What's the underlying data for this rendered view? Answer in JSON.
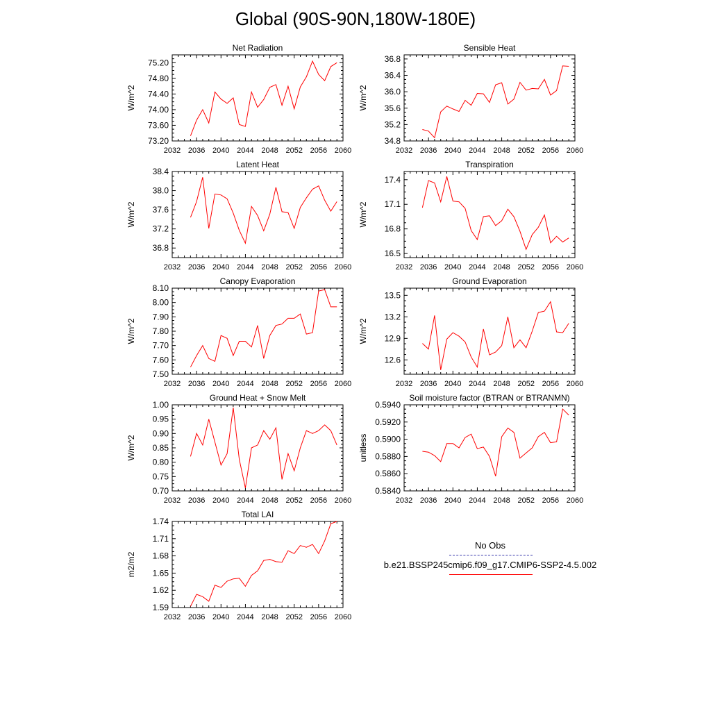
{
  "page": {
    "title": "Global (90S-90N,180W-180E)"
  },
  "legend": {
    "obs_label": "No Obs",
    "model_label": "b.e21.BSSP245cmip6.f09_g17.CMIP6-SSP2-4.5.002",
    "obs_color": "#3333aa",
    "model_color": "#ff0000"
  },
  "chart_data": [
    {
      "type": "line",
      "title": "Net Radiation",
      "ylabel": "W/m^2",
      "xlim": [
        2032,
        2060
      ],
      "ylim": [
        73.2,
        75.4
      ],
      "xticks": [
        "2032",
        "2036",
        "2040",
        "2044",
        "2048",
        "2052",
        "2056",
        "2060"
      ],
      "yticks": [
        "73.20",
        "73.60",
        "74.00",
        "74.40",
        "74.80",
        "75.20"
      ],
      "x": [
        2035,
        2036,
        2037,
        2038,
        2039,
        2040,
        2041,
        2042,
        2043,
        2044,
        2045,
        2046,
        2047,
        2048,
        2049,
        2050,
        2051,
        2052,
        2053,
        2054,
        2055,
        2056,
        2057,
        2058,
        2059
      ],
      "values": [
        73.33,
        73.73,
        74.0,
        73.66,
        74.45,
        74.27,
        74.16,
        74.3,
        73.62,
        73.57,
        74.45,
        74.06,
        74.26,
        74.57,
        74.64,
        74.11,
        74.6,
        74.02,
        74.58,
        74.84,
        75.24,
        74.9,
        74.74,
        75.1,
        75.2
      ],
      "color": "#ff0000"
    },
    {
      "type": "line",
      "title": "Sensible Heat",
      "ylabel": "W/m^2",
      "xlim": [
        2032,
        2060
      ],
      "ylim": [
        34.8,
        36.9
      ],
      "xticks": [
        "2032",
        "2036",
        "2040",
        "2044",
        "2048",
        "2052",
        "2056",
        "2060"
      ],
      "yticks": [
        "34.8",
        "35.2",
        "35.6",
        "36.0",
        "36.4",
        "36.8"
      ],
      "x": [
        2035,
        2036,
        2037,
        2038,
        2039,
        2040,
        2041,
        2042,
        2043,
        2044,
        2045,
        2046,
        2047,
        2048,
        2049,
        2050,
        2051,
        2052,
        2053,
        2054,
        2055,
        2056,
        2057,
        2058,
        2059
      ],
      "values": [
        35.08,
        35.04,
        34.88,
        35.51,
        35.65,
        35.58,
        35.52,
        35.79,
        35.67,
        35.96,
        35.95,
        35.74,
        36.17,
        36.22,
        35.7,
        35.82,
        36.23,
        36.04,
        36.08,
        36.07,
        36.3,
        35.92,
        36.03,
        36.63,
        36.62
      ],
      "color": "#ff0000"
    },
    {
      "type": "line",
      "title": "Latent Heat",
      "ylabel": "W/m^2",
      "xlim": [
        2032,
        2060
      ],
      "ylim": [
        36.6,
        38.4
      ],
      "xticks": [
        "2032",
        "2036",
        "2040",
        "2044",
        "2048",
        "2052",
        "2056",
        "2060"
      ],
      "yticks": [
        "36.8",
        "37.2",
        "37.6",
        "38.0",
        "38.4"
      ],
      "x": [
        2035,
        2036,
        2037,
        2038,
        2039,
        2040,
        2041,
        2042,
        2043,
        2044,
        2045,
        2046,
        2047,
        2048,
        2049,
        2050,
        2051,
        2052,
        2053,
        2054,
        2055,
        2056,
        2057,
        2058,
        2059
      ],
      "values": [
        37.44,
        37.77,
        38.28,
        37.21,
        37.93,
        37.91,
        37.83,
        37.53,
        37.17,
        36.9,
        37.67,
        37.48,
        37.16,
        37.51,
        38.07,
        37.56,
        37.54,
        37.21,
        37.65,
        37.85,
        38.03,
        38.1,
        37.8,
        37.57,
        37.77
      ],
      "color": "#ff0000"
    },
    {
      "type": "line",
      "title": "Transpiration",
      "ylabel": "W/m^2",
      "xlim": [
        2032,
        2060
      ],
      "ylim": [
        16.45,
        17.5
      ],
      "xticks": [
        "2032",
        "2036",
        "2040",
        "2044",
        "2048",
        "2052",
        "2056",
        "2060"
      ],
      "yticks": [
        "16.5",
        "16.8",
        "17.1",
        "17.4"
      ],
      "x": [
        2035,
        2036,
        2037,
        2038,
        2039,
        2040,
        2041,
        2042,
        2043,
        2044,
        2045,
        2046,
        2047,
        2048,
        2049,
        2050,
        2051,
        2052,
        2053,
        2054,
        2055,
        2056,
        2057,
        2058,
        2059
      ],
      "values": [
        17.06,
        17.39,
        17.36,
        17.13,
        17.44,
        17.14,
        17.13,
        17.05,
        16.78,
        16.67,
        16.95,
        16.96,
        16.84,
        16.9,
        17.04,
        16.95,
        16.77,
        16.55,
        16.73,
        16.82,
        16.97,
        16.63,
        16.71,
        16.64,
        16.69
      ],
      "color": "#ff0000"
    },
    {
      "type": "line",
      "title": "Canopy Evaporation",
      "ylabel": "W/m^2",
      "xlim": [
        2032,
        2060
      ],
      "ylim": [
        7.5,
        8.1
      ],
      "xticks": [
        "2032",
        "2036",
        "2040",
        "2044",
        "2048",
        "2052",
        "2056",
        "2060"
      ],
      "yticks": [
        "7.50",
        "7.60",
        "7.70",
        "7.80",
        "7.90",
        "8.00",
        "8.10"
      ],
      "x": [
        2035,
        2036,
        2037,
        2038,
        2039,
        2040,
        2041,
        2042,
        2043,
        2044,
        2045,
        2046,
        2047,
        2048,
        2049,
        2050,
        2051,
        2052,
        2053,
        2054,
        2055,
        2056,
        2057,
        2058,
        2059
      ],
      "values": [
        7.55,
        7.63,
        7.7,
        7.61,
        7.59,
        7.77,
        7.75,
        7.63,
        7.73,
        7.73,
        7.69,
        7.84,
        7.61,
        7.77,
        7.84,
        7.85,
        7.89,
        7.89,
        7.92,
        7.78,
        7.79,
        8.08,
        8.09,
        7.97,
        7.97
      ],
      "color": "#ff0000"
    },
    {
      "type": "line",
      "title": "Ground Evaporation",
      "ylabel": "W/m^2",
      "xlim": [
        2032,
        2060
      ],
      "ylim": [
        12.4,
        13.6
      ],
      "xticks": [
        "2032",
        "2036",
        "2040",
        "2044",
        "2048",
        "2052",
        "2056",
        "2060"
      ],
      "yticks": [
        "12.6",
        "12.9",
        "13.2",
        "13.5"
      ],
      "x": [
        2035,
        2036,
        2037,
        2038,
        2039,
        2040,
        2041,
        2042,
        2043,
        2044,
        2045,
        2046,
        2047,
        2048,
        2049,
        2050,
        2051,
        2052,
        2053,
        2054,
        2055,
        2056,
        2057,
        2058,
        2059
      ],
      "values": [
        12.83,
        12.75,
        13.22,
        12.46,
        12.89,
        12.98,
        12.93,
        12.85,
        12.64,
        12.5,
        13.03,
        12.67,
        12.71,
        12.8,
        13.2,
        12.77,
        12.88,
        12.77,
        13.0,
        13.26,
        13.28,
        13.41,
        12.99,
        12.98,
        13.11
      ],
      "color": "#ff0000"
    },
    {
      "type": "line",
      "title": "Ground Heat + Snow Melt",
      "ylabel": "W/m^2",
      "xlim": [
        2032,
        2060
      ],
      "ylim": [
        0.7,
        1.0
      ],
      "xticks": [
        "2032",
        "2036",
        "2040",
        "2044",
        "2048",
        "2052",
        "2056",
        "2060"
      ],
      "yticks": [
        "0.70",
        "0.75",
        "0.80",
        "0.85",
        "0.90",
        "0.95",
        "1.00"
      ],
      "x": [
        2035,
        2036,
        2037,
        2038,
        2039,
        2040,
        2041,
        2042,
        2043,
        2044,
        2045,
        2046,
        2047,
        2048,
        2049,
        2050,
        2051,
        2052,
        2053,
        2054,
        2055,
        2056,
        2057,
        2058,
        2059
      ],
      "values": [
        0.82,
        0.9,
        0.86,
        0.95,
        0.87,
        0.79,
        0.83,
        0.99,
        0.81,
        0.71,
        0.85,
        0.86,
        0.91,
        0.88,
        0.92,
        0.74,
        0.83,
        0.77,
        0.85,
        0.91,
        0.9,
        0.91,
        0.93,
        0.91,
        0.86
      ],
      "color": "#ff0000"
    },
    {
      "type": "line",
      "title": "Soil moisture factor (BTRAN or BTRANMN)",
      "ylabel": "unitless",
      "xlim": [
        2032,
        2060
      ],
      "ylim": [
        0.584,
        0.594
      ],
      "xticks": [
        "2032",
        "2036",
        "2040",
        "2044",
        "2048",
        "2052",
        "2056",
        "2060"
      ],
      "yticks": [
        "0.5840",
        "0.5860",
        "0.5880",
        "0.5900",
        "0.5920",
        "0.5940"
      ],
      "x": [
        2035,
        2036,
        2037,
        2038,
        2039,
        2040,
        2041,
        2042,
        2043,
        2044,
        2045,
        2046,
        2047,
        2048,
        2049,
        2050,
        2051,
        2052,
        2053,
        2054,
        2055,
        2056,
        2057,
        2058,
        2059
      ],
      "values": [
        0.5886,
        0.5885,
        0.5881,
        0.5874,
        0.5895,
        0.5895,
        0.589,
        0.5902,
        0.5906,
        0.5889,
        0.5891,
        0.588,
        0.5857,
        0.5903,
        0.5913,
        0.5908,
        0.5878,
        0.5884,
        0.589,
        0.5903,
        0.5908,
        0.5896,
        0.5897,
        0.5935,
        0.5928
      ],
      "color": "#ff0000"
    },
    {
      "type": "line",
      "title": "Total LAI",
      "ylabel": "m2/m2",
      "xlim": [
        2032,
        2060
      ],
      "ylim": [
        1.59,
        1.74
      ],
      "xticks": [
        "2032",
        "2036",
        "2040",
        "2044",
        "2048",
        "2052",
        "2056",
        "2060"
      ],
      "yticks": [
        "1.59",
        "1.62",
        "1.65",
        "1.68",
        "1.71",
        "1.74"
      ],
      "x": [
        2035,
        2036,
        2037,
        2038,
        2039,
        2040,
        2041,
        2042,
        2043,
        2044,
        2045,
        2046,
        2047,
        2048,
        2049,
        2050,
        2051,
        2052,
        2053,
        2054,
        2055,
        2056,
        2057,
        2058,
        2059
      ],
      "values": [
        1.592,
        1.613,
        1.609,
        1.601,
        1.629,
        1.625,
        1.636,
        1.64,
        1.641,
        1.627,
        1.646,
        1.654,
        1.672,
        1.674,
        1.67,
        1.669,
        1.689,
        1.684,
        1.698,
        1.695,
        1.7,
        1.684,
        1.706,
        1.736,
        1.74
      ],
      "color": "#ff0000"
    }
  ]
}
